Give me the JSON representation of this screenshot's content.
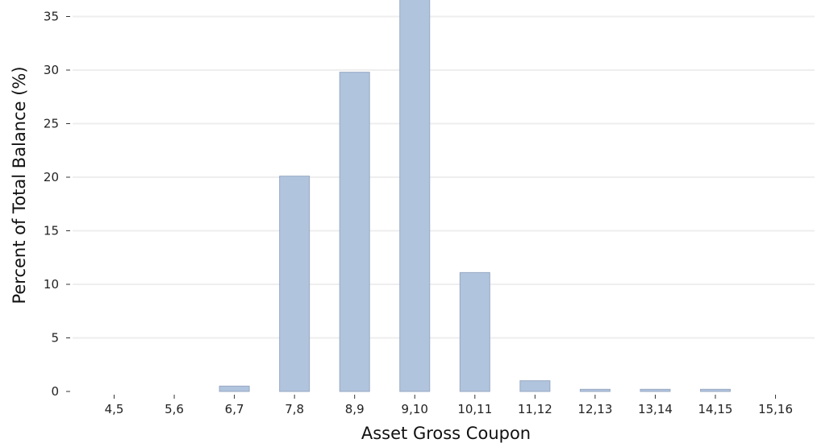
{
  "chart_data": {
    "type": "bar",
    "title": "",
    "xlabel": "Asset Gross Coupon",
    "ylabel": "Percent of Total Balance (%)",
    "categories": [
      "4,5",
      "5,6",
      "6,7",
      "7,8",
      "8,9",
      "9,10",
      "10,11",
      "11,12",
      "12,13",
      "13,14",
      "14,15",
      "15,16"
    ],
    "values": [
      0,
      0,
      0.5,
      20.1,
      29.8,
      36.8,
      11.1,
      1.0,
      0.2,
      0.2,
      0.2,
      0
    ],
    "yticks": [
      0,
      5,
      10,
      15,
      20,
      25,
      30,
      35
    ],
    "ylim": [
      0,
      36.5
    ],
    "grid": true,
    "colors": {
      "bar_fill": "#b0c4de",
      "bar_edge": "#98a9c2",
      "grid": "#eeeeee"
    }
  }
}
